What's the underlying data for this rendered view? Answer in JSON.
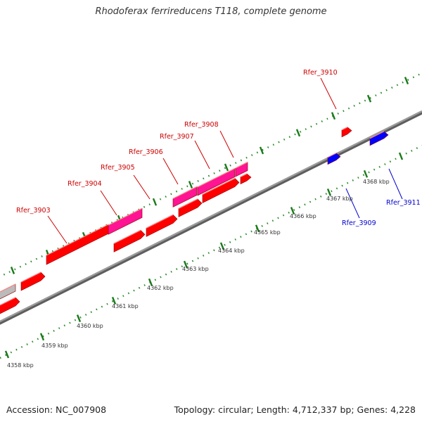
{
  "title": "Rhodoferax ferrireducens T118, complete genome",
  "footer": {
    "accession": "Accession: NC_007908",
    "summary": "Topology: circular; Length: 4,712,337 bp; Genes: 4,228"
  },
  "colors": {
    "forward_cds": "#ff0000",
    "forward_feature": "#ff1493",
    "reverse_cds": "#0000ff",
    "other": "#bbbbbb",
    "tick": "#1a7a1a",
    "backbone": "#888888",
    "label_forward": "#cc0000",
    "label_reverse": "#0000cc"
  },
  "scale_labels": [
    "4358 kbp",
    "4359 kbp",
    "4360 kbp",
    "4361 kbp",
    "4362 kbp",
    "4363 kbp",
    "4364 kbp",
    "4365 kbp",
    "4366 kbp",
    "4367 kbp",
    "4368 kbp"
  ],
  "gene_labels": [
    {
      "name": "Rfer_3903",
      "strand": "forward"
    },
    {
      "name": "Rfer_3904",
      "strand": "forward"
    },
    {
      "name": "Rfer_3905",
      "strand": "forward"
    },
    {
      "name": "Rfer_3906",
      "strand": "forward"
    },
    {
      "name": "Rfer_3907",
      "strand": "forward"
    },
    {
      "name": "Rfer_3908",
      "strand": "forward"
    },
    {
      "name": "Rfer_3910",
      "strand": "forward"
    },
    {
      "name": "Rfer_3909",
      "strand": "reverse"
    },
    {
      "name": "Rfer_3911",
      "strand": "reverse"
    }
  ]
}
